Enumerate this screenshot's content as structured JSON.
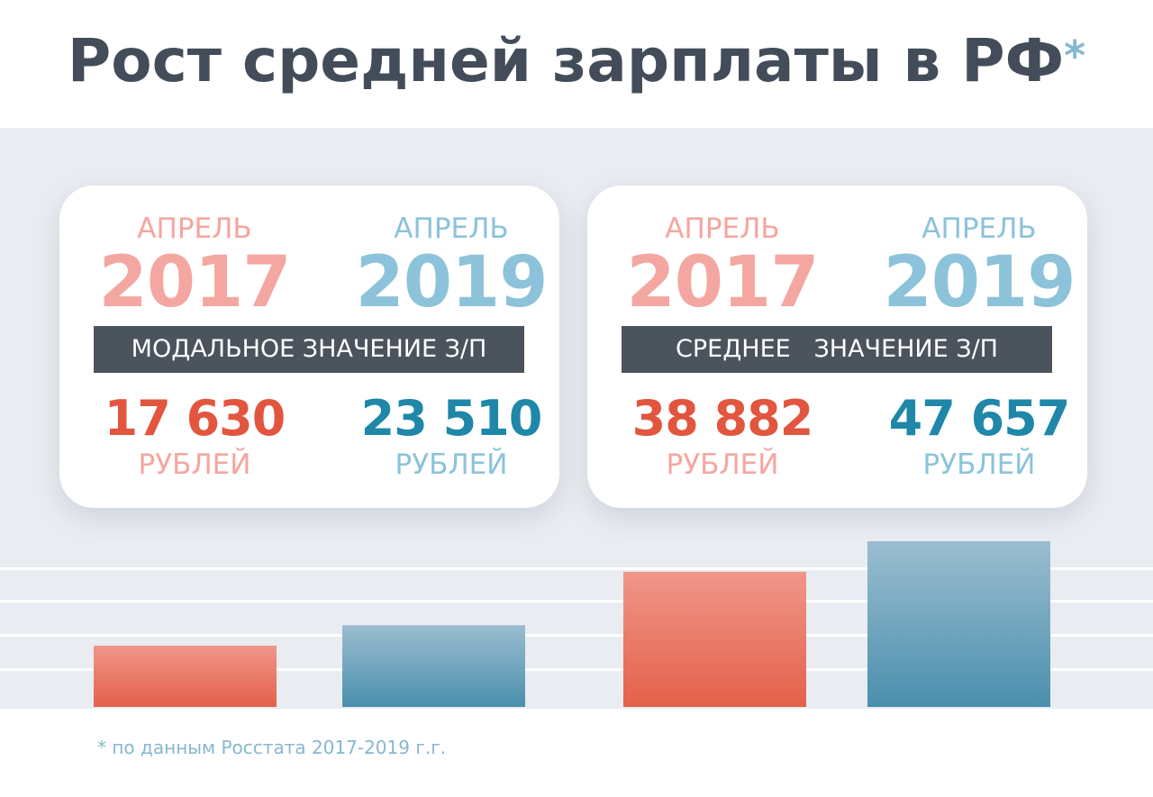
{
  "title": "Рост средней зарплаты в РФ",
  "title_asterisk": "*",
  "cards": [
    {
      "left": {
        "month": "АПРЕЛЬ",
        "year": "2017",
        "value": "17 630",
        "unit": "РУБЛЕЙ"
      },
      "right": {
        "month": "АПРЕЛЬ",
        "year": "2019",
        "value": "23 510",
        "unit": "РУБЛЕЙ"
      },
      "label": "МОДАЛЬНОЕ ЗНАЧЕНИЕ З/П"
    },
    {
      "left": {
        "month": "АПРЕЛЬ",
        "year": "2017",
        "value": "38 882",
        "unit": "РУБЛЕЙ"
      },
      "right": {
        "month": "АПРЕЛЬ",
        "year": "2019",
        "value": "47 657",
        "unit": "РУБЛЕЙ"
      },
      "label": "СРЕДНЕЕ   ЗНАЧЕНИЕ З/П"
    }
  ],
  "footnote": "* по данным Росстата 2017-2019 г.г.",
  "colors": {
    "red_bar_top": "#f0968a",
    "red_bar_bottom": "#e4614a",
    "blue_bar_top": "#9bbdd0",
    "blue_bar_bottom": "#4a8fad",
    "background_band": "#e9ecf1",
    "title": "#434d59",
    "label_bar": "#4b535d"
  },
  "chart_data": {
    "type": "bar",
    "title": "",
    "xlabel": "",
    "ylabel": "",
    "categories": [
      "",
      "",
      "",
      ""
    ],
    "values": [
      17630,
      23510,
      38882,
      47657
    ],
    "ylim": [
      0,
      60000
    ],
    "grid": true,
    "legend": "none",
    "series": [
      {
        "values": [
          17630,
          null,
          38882,
          null
        ]
      },
      {
        "values": [
          null,
          23510,
          null,
          47657
        ]
      }
    ]
  }
}
